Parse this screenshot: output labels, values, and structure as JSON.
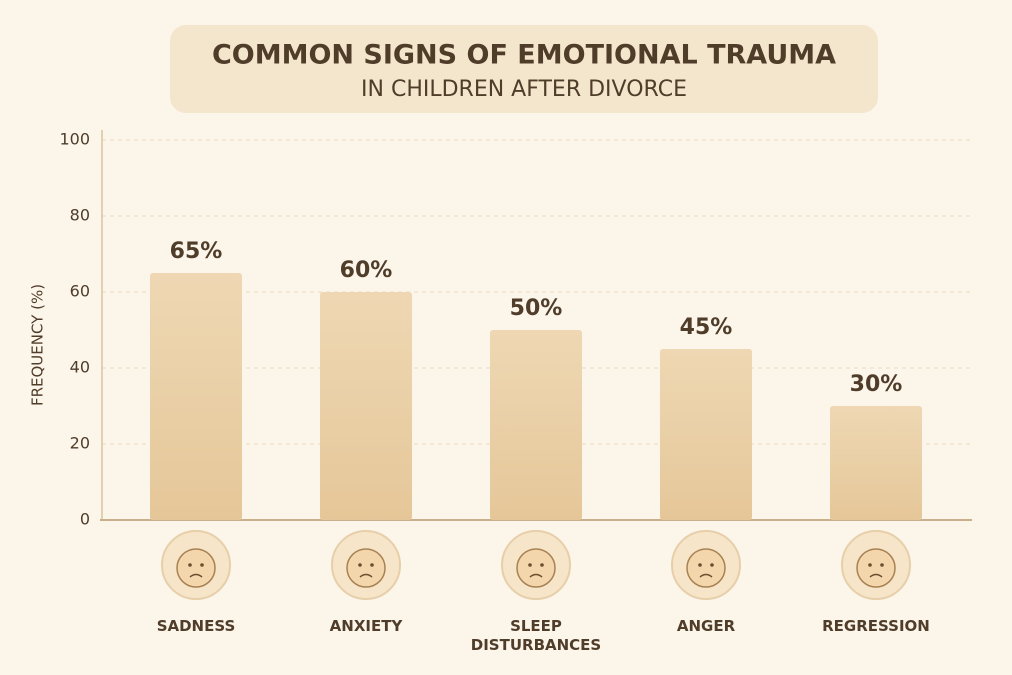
{
  "chart_data": {
    "type": "bar",
    "title": "COMMON SIGNS OF EMOTIONAL TRAUMA",
    "subtitle": "IN CHILDREN AFTER DIVORCE",
    "y_label": "FREQUENCY (%)",
    "categories": [
      "SADNESS",
      "ANXIETY",
      "SLEEP DISTURBANCES",
      "ANGER",
      "REGRESSION"
    ],
    "values": [
      65,
      60,
      50,
      45,
      30
    ],
    "value_labels": [
      "65%",
      "60%",
      "50%",
      "45%",
      "30%"
    ],
    "color": "#ebd0a5",
    "ylim": [
      0,
      100
    ],
    "yticks": [
      0,
      20,
      40,
      60,
      80,
      100
    ],
    "grid": true
  }
}
